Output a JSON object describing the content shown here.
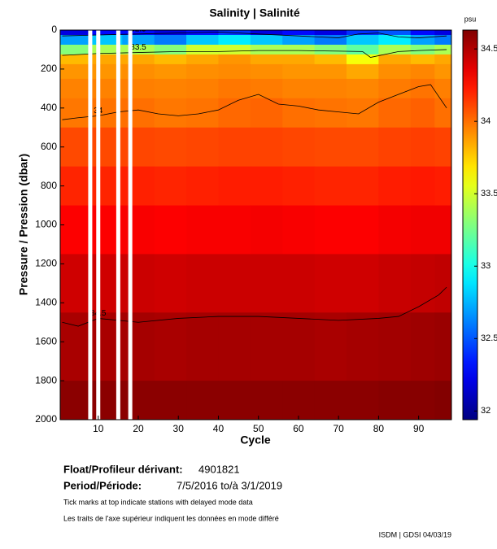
{
  "chart_data": {
    "type": "heatmap",
    "title": "Salinity | Salinité",
    "xlabel": "Cycle",
    "ylabel": "Pressure / Pression (dbar)",
    "xlim": [
      0.5,
      98.2
    ],
    "xticks": [
      10,
      20,
      30,
      40,
      50,
      60,
      70,
      80,
      90
    ],
    "ylim": [
      0,
      2000
    ],
    "yticks": [
      0,
      200,
      400,
      600,
      800,
      1000,
      1200,
      1400,
      1600,
      1800,
      2000
    ],
    "y_inverted": true,
    "colormap": "jet",
    "colorbar_label": "psu",
    "clim": [
      31.94,
      34.63
    ],
    "colorbar_ticks": [
      32,
      32.5,
      33,
      33.5,
      34,
      34.5
    ],
    "x": [
      4,
      12,
      20,
      28,
      36,
      44,
      52,
      60,
      68,
      76,
      84,
      92,
      96
    ],
    "y": [
      0,
      50,
      100,
      150,
      200,
      300,
      400,
      600,
      800,
      1000,
      1300,
      1600,
      2000
    ],
    "z": [
      [
        32.2,
        32.3,
        32.3,
        32.2,
        32.3,
        32.4,
        32.2,
        32.3,
        32.2,
        32.4,
        32.5,
        32.3,
        32.2
      ],
      [
        32.7,
        32.8,
        32.7,
        32.6,
        32.8,
        32.9,
        32.8,
        32.7,
        32.6,
        32.8,
        32.9,
        32.7,
        32.6
      ],
      [
        33.3,
        33.4,
        33.4,
        33.3,
        33.5,
        33.5,
        33.4,
        33.4,
        33.3,
        33.2,
        33.4,
        33.3,
        33.4
      ],
      [
        33.8,
        33.85,
        33.85,
        33.8,
        33.85,
        33.9,
        33.85,
        33.85,
        33.8,
        33.6,
        33.85,
        33.8,
        33.85
      ],
      [
        33.9,
        33.9,
        33.92,
        33.9,
        33.92,
        33.93,
        33.92,
        33.9,
        33.9,
        33.85,
        33.92,
        33.94,
        33.9
      ],
      [
        33.95,
        33.95,
        33.96,
        33.95,
        33.96,
        33.98,
        33.97,
        33.95,
        33.95,
        33.94,
        33.97,
        33.99,
        33.96
      ],
      [
        33.98,
        33.99,
        34.0,
        33.98,
        33.99,
        34.02,
        34.03,
        34.0,
        33.99,
        33.98,
        34.02,
        34.04,
        34.0
      ],
      [
        34.1,
        34.1,
        34.11,
        34.1,
        34.11,
        34.12,
        34.12,
        34.11,
        34.1,
        34.1,
        34.12,
        34.13,
        34.12
      ],
      [
        34.2,
        34.2,
        34.21,
        34.2,
        34.21,
        34.22,
        34.22,
        34.21,
        34.2,
        34.2,
        34.22,
        34.23,
        34.22
      ],
      [
        34.3,
        34.3,
        34.31,
        34.3,
        34.31,
        34.31,
        34.32,
        34.31,
        34.3,
        34.3,
        34.32,
        34.33,
        34.33
      ],
      [
        34.42,
        34.42,
        34.43,
        34.42,
        34.43,
        34.43,
        34.43,
        34.43,
        34.42,
        34.42,
        34.44,
        34.45,
        34.46
      ],
      [
        34.52,
        34.52,
        34.53,
        34.52,
        34.53,
        34.53,
        34.53,
        34.53,
        34.52,
        34.53,
        34.54,
        34.55,
        34.56
      ],
      [
        34.6,
        34.6,
        34.6,
        34.6,
        34.6,
        34.6,
        34.6,
        34.6,
        34.6,
        34.6,
        34.61,
        34.61,
        34.62
      ]
    ],
    "missing_cycles": [
      8,
      10,
      15,
      18
    ],
    "contours": [
      {
        "level": 32.5,
        "cycles": [
          1,
          10,
          20,
          30,
          40,
          50,
          60,
          70,
          75,
          80,
          85,
          90,
          97
        ],
        "pressure": [
          30,
          25,
          20,
          15,
          10,
          20,
          30,
          40,
          20,
          15,
          35,
          40,
          30
        ]
      },
      {
        "level": 33.5,
        "cycles": [
          1,
          10,
          20,
          30,
          40,
          50,
          60,
          70,
          76,
          78,
          85,
          90,
          97
        ],
        "pressure": [
          130,
          120,
          115,
          110,
          110,
          105,
          105,
          108,
          110,
          140,
          110,
          105,
          100
        ]
      },
      {
        "level": 34,
        "cycles": [
          1,
          5,
          10,
          15,
          20,
          25,
          30,
          35,
          40,
          45,
          50,
          55,
          60,
          65,
          70,
          75,
          80,
          85,
          90,
          93,
          95,
          97
        ],
        "pressure": [
          460,
          450,
          440,
          420,
          410,
          430,
          440,
          430,
          410,
          360,
          330,
          380,
          390,
          410,
          420,
          430,
          370,
          330,
          290,
          280,
          340,
          400
        ]
      },
      {
        "level": 34.5,
        "cycles": [
          1,
          5,
          10,
          20,
          30,
          40,
          50,
          60,
          70,
          80,
          85,
          90,
          95,
          97
        ],
        "pressure": [
          1500,
          1520,
          1480,
          1500,
          1480,
          1470,
          1470,
          1480,
          1490,
          1480,
          1470,
          1420,
          1360,
          1320
        ]
      }
    ],
    "float_label": "Float/Profileur dérivant:",
    "float_id": "4901821",
    "period_label": "Period/Période:",
    "period": "7/5/2016  to/à  3/1/2019",
    "note_en": "Tick marks at top indicate stations with delayed mode data",
    "note_fr": "Les traits de l'axe supérieur indiquent les données en mode différé",
    "credit": "ISDM | GDSI  04/03/19"
  }
}
